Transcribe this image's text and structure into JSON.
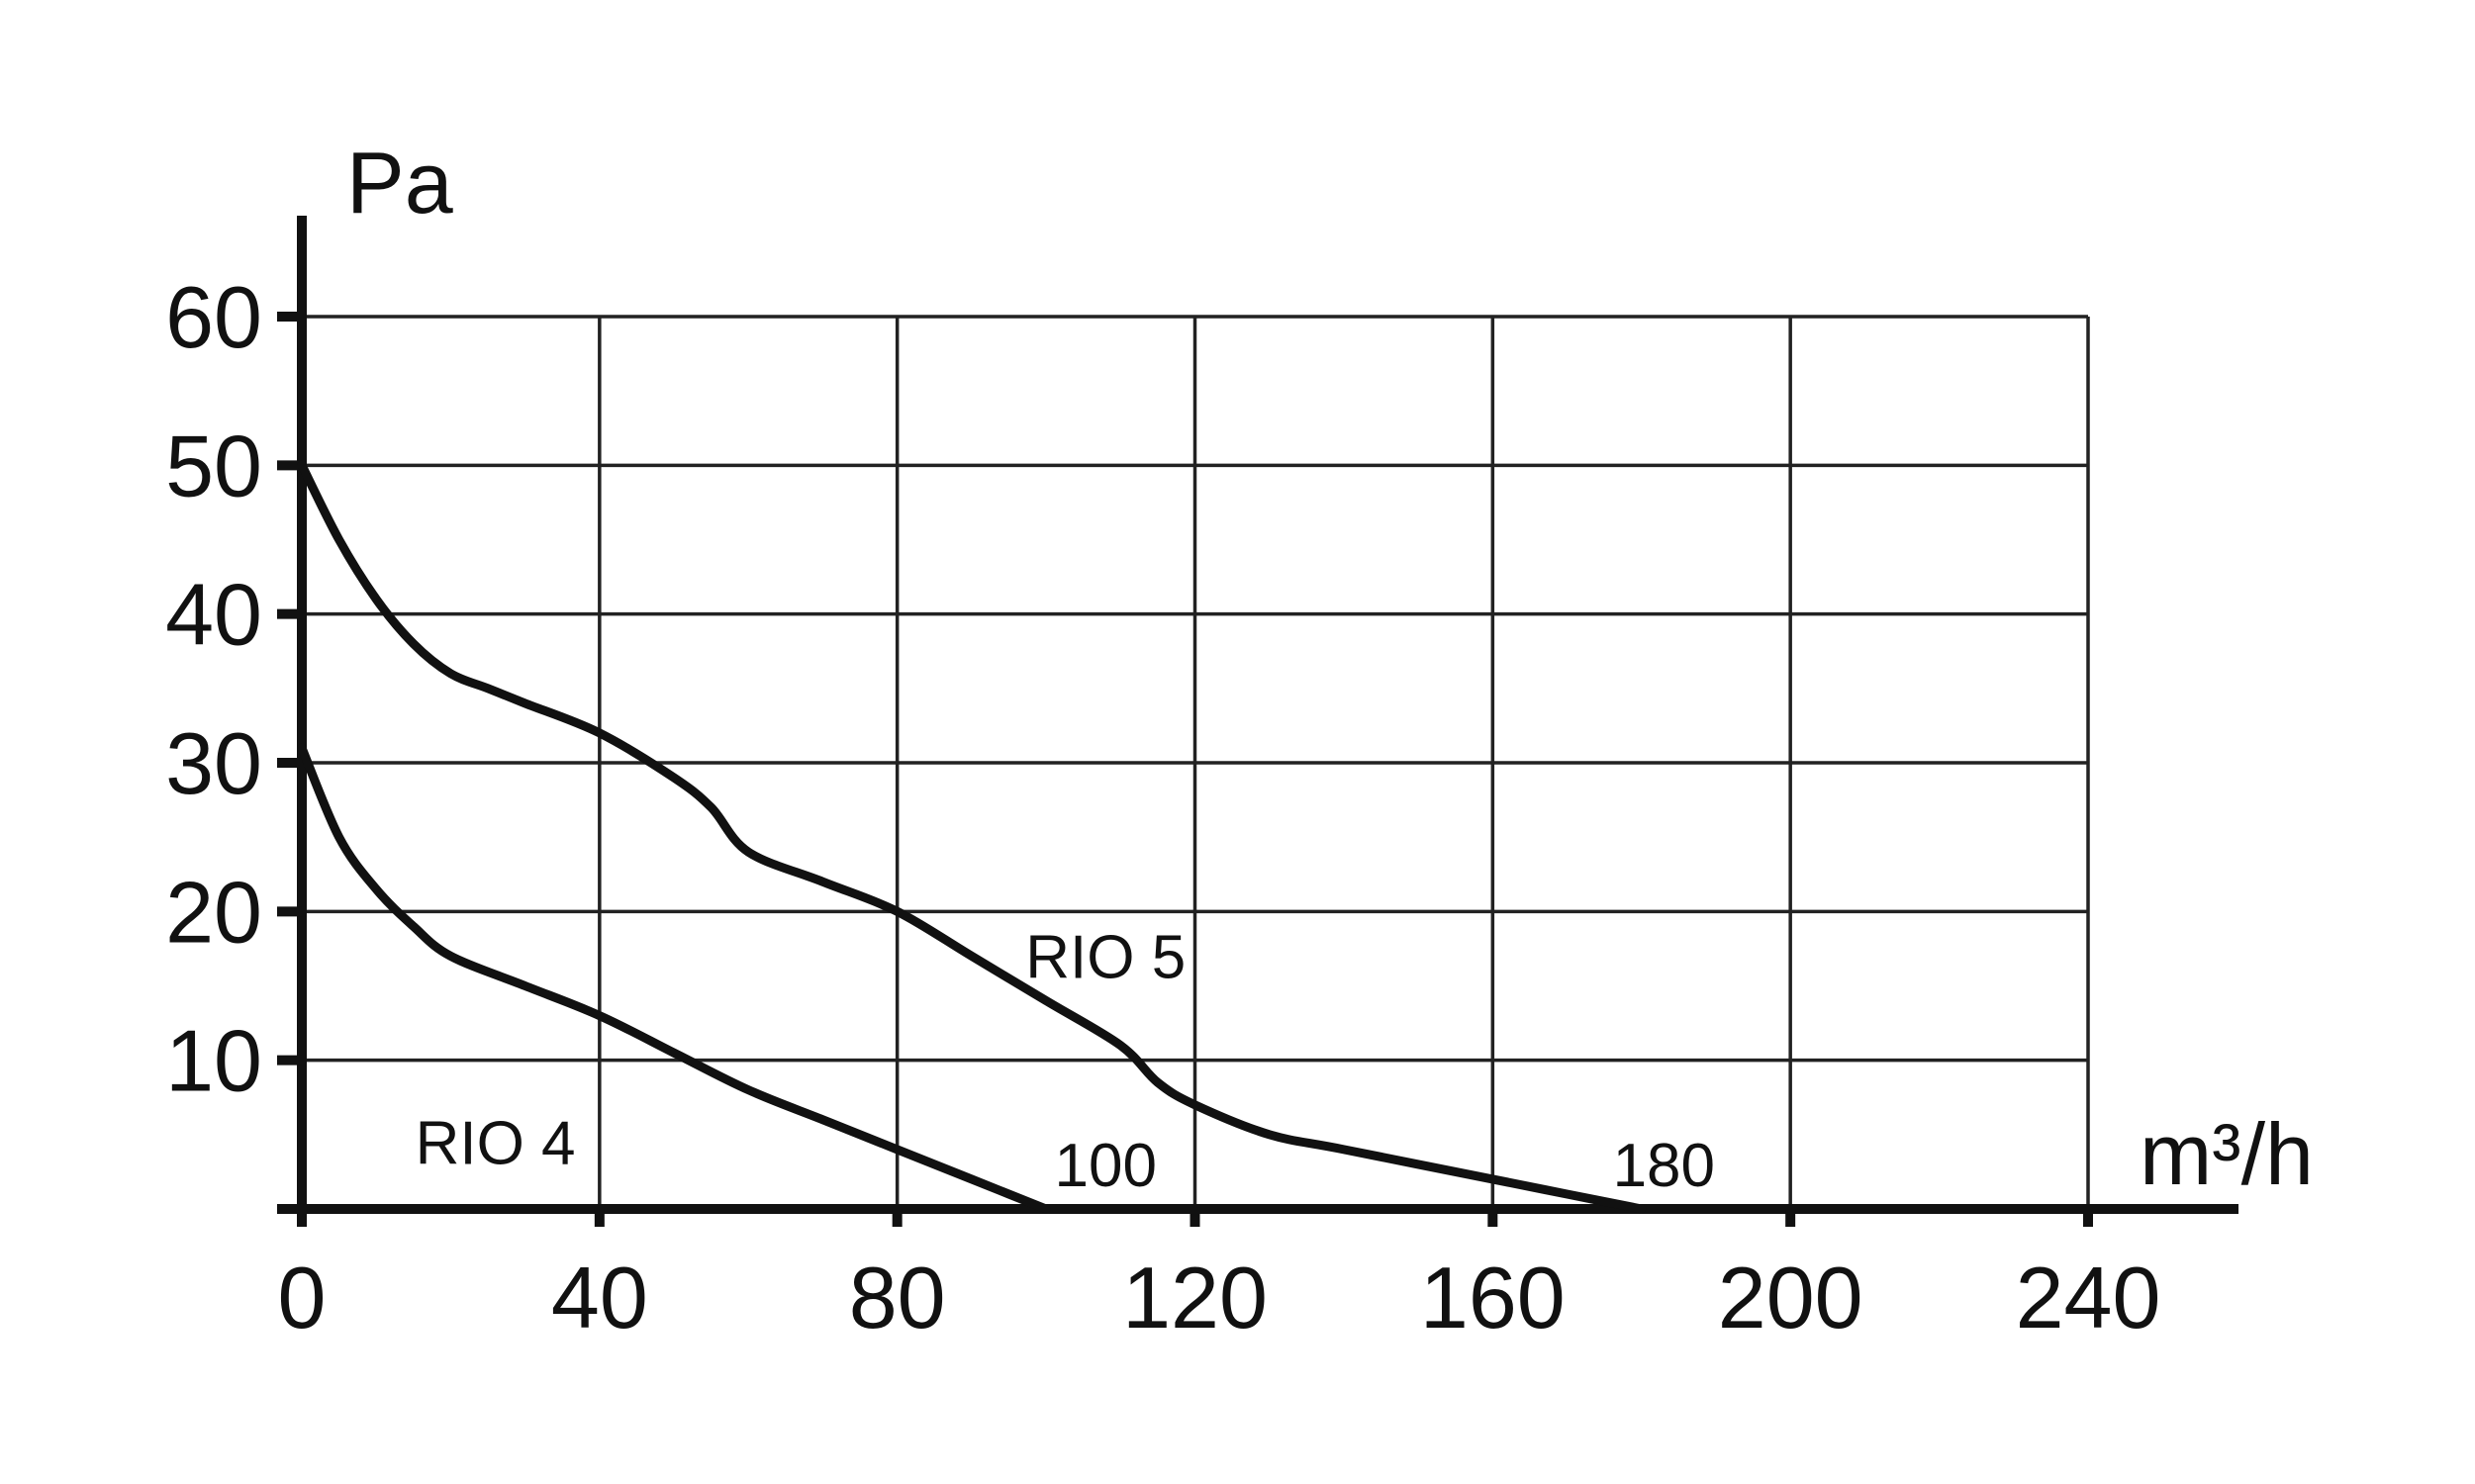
{
  "chart_data": {
    "type": "line",
    "ylabel": "Pa",
    "xlabel": "m³/h",
    "xlim": [
      0,
      240
    ],
    "ylim": [
      0,
      60
    ],
    "x_ticks": [
      0,
      40,
      80,
      120,
      160,
      200,
      240
    ],
    "y_ticks": [
      10,
      20,
      30,
      40,
      50,
      60
    ],
    "grid": true,
    "series": [
      {
        "name": "RIO 5",
        "x": [
          0,
          5,
          10,
          15,
          20,
          25,
          30,
          40,
          50,
          55,
          60,
          70,
          80,
          90,
          100,
          110,
          115,
          120,
          130,
          140,
          160,
          170,
          180
        ],
        "y": [
          50,
          45,
          41,
          38,
          36,
          35,
          34,
          32,
          29,
          27,
          24,
          22,
          20,
          17,
          14,
          11,
          8.5,
          7,
          5,
          4,
          2,
          1,
          0
        ]
      },
      {
        "name": "RIO 4",
        "x": [
          0,
          5,
          10,
          15,
          20,
          30,
          40,
          50,
          60,
          70,
          80,
          90,
          100
        ],
        "y": [
          31,
          25,
          21.5,
          19,
          17,
          15,
          13,
          10.5,
          8,
          6,
          4,
          2,
          0
        ]
      }
    ],
    "annotations": [
      {
        "text": "RIO 4",
        "x": 26,
        "y": 4.5
      },
      {
        "text": "RIO 5",
        "x": 108,
        "y": 17
      },
      {
        "text": "100",
        "x": 108,
        "y": 3
      },
      {
        "text": "180",
        "x": 183,
        "y": 3
      }
    ]
  }
}
